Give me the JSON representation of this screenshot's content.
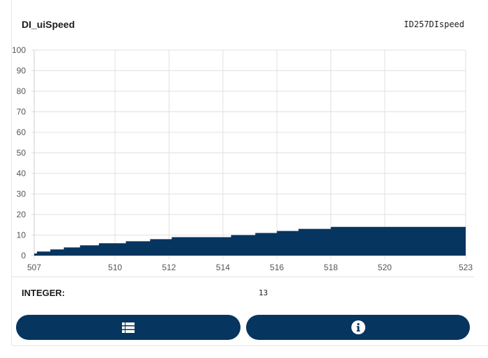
{
  "header": {
    "signal_name": "DI_uiSpeed",
    "signal_id": "ID257DIspeed"
  },
  "info": {
    "type_label": "INTEGER:",
    "type_value": "13"
  },
  "buttons": {
    "list_icon": "list-icon",
    "info_icon": "info-icon"
  },
  "colors": {
    "accent": "#06355f",
    "grid": "#e0e0e0",
    "axis_text": "#555555"
  },
  "chart_data": {
    "type": "area",
    "style": "step",
    "title": "",
    "xlabel": "",
    "ylabel": "",
    "xlim": [
      507,
      523
    ],
    "ylim": [
      0,
      100
    ],
    "x_ticks": [
      507,
      510,
      512,
      514,
      516,
      518,
      520,
      523
    ],
    "y_ticks": [
      0,
      10,
      20,
      30,
      40,
      50,
      60,
      70,
      80,
      90,
      100
    ],
    "grid": true,
    "series": [
      {
        "x": [
          507,
          507.1,
          507.6,
          508.1,
          508.7,
          509.4,
          510.4,
          511.3,
          512.1,
          512.9,
          514.3,
          515.2,
          516.0,
          516.8,
          518.0,
          523.0
        ],
        "values": [
          1,
          2,
          3,
          4,
          5,
          6,
          7,
          8,
          9,
          9,
          10,
          11,
          12,
          13,
          14,
          13
        ]
      }
    ]
  }
}
